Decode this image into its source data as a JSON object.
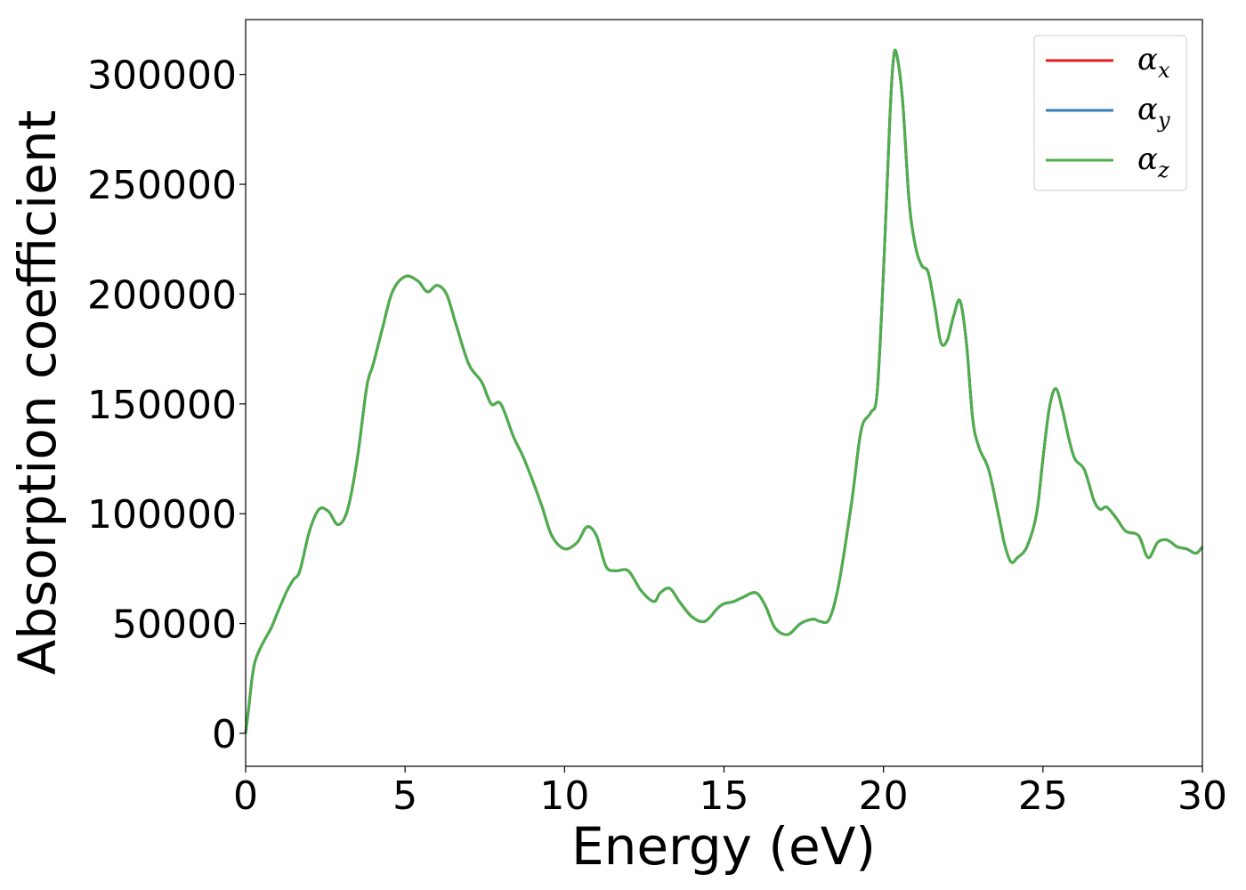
{
  "chart_data": {
    "type": "line",
    "title": "",
    "xlabel": "Energy (eV)",
    "ylabel": "Absorption coefficient",
    "xlim": [
      0,
      30
    ],
    "ylim": [
      -15000,
      325000
    ],
    "xticks": [
      0,
      5,
      10,
      15,
      20,
      25,
      30
    ],
    "xtick_labels": [
      "0",
      "5",
      "10",
      "15",
      "20",
      "25",
      "30"
    ],
    "yticks": [
      0,
      50000,
      100000,
      150000,
      200000,
      250000,
      300000
    ],
    "ytick_labels": [
      "0",
      "50000",
      "100000",
      "150000",
      "200000",
      "250000",
      "300000"
    ],
    "grid": false,
    "legend_position": "top-right",
    "x": [
      0,
      0.1,
      0.2,
      0.3,
      0.5,
      0.8,
      1.0,
      1.3,
      1.5,
      1.7,
      2.0,
      2.3,
      2.6,
      2.9,
      3.2,
      3.5,
      3.8,
      4.0,
      4.3,
      4.6,
      5.0,
      5.4,
      5.7,
      6.0,
      6.3,
      6.6,
      7.0,
      7.4,
      7.7,
      8.0,
      8.4,
      8.7,
      9.0,
      9.3,
      9.6,
      10.0,
      10.4,
      10.7,
      11.0,
      11.3,
      11.6,
      12.0,
      12.4,
      12.8,
      13.0,
      13.3,
      13.6,
      14.0,
      14.4,
      14.8,
      15.0,
      15.3,
      15.6,
      16.0,
      16.3,
      16.6,
      17.0,
      17.4,
      17.8,
      18.0,
      18.3,
      18.6,
      19.0,
      19.3,
      19.6,
      19.8,
      20.0,
      20.2,
      20.3,
      20.4,
      20.6,
      20.8,
      21.0,
      21.2,
      21.4,
      21.6,
      21.8,
      22.0,
      22.2,
      22.4,
      22.6,
      22.8,
      23.0,
      23.3,
      23.6,
      23.8,
      24.0,
      24.2,
      24.5,
      24.8,
      25.0,
      25.2,
      25.4,
      25.6,
      25.8,
      26.0,
      26.3,
      26.6,
      26.8,
      27.0,
      27.3,
      27.6,
      28.0,
      28.3,
      28.6,
      28.9,
      29.2,
      29.5,
      29.8,
      30.0
    ],
    "series": [
      {
        "name": "α_x",
        "color": "#e41a1c",
        "values": [
          0,
          12000,
          25000,
          33000,
          40000,
          48000,
          55000,
          65000,
          70000,
          74000,
          92000,
          102000,
          101000,
          95000,
          102000,
          125000,
          158000,
          168000,
          185000,
          201000,
          208000,
          206000,
          201000,
          204000,
          200000,
          186000,
          168000,
          160000,
          150000,
          150000,
          135000,
          126000,
          115000,
          103000,
          90000,
          84000,
          87000,
          94000,
          90000,
          76000,
          74000,
          74000,
          65000,
          60000,
          64000,
          66000,
          60000,
          53000,
          51000,
          57000,
          59000,
          60000,
          62000,
          64000,
          58000,
          48000,
          45000,
          50000,
          52000,
          51000,
          52000,
          68000,
          105000,
          138000,
          146000,
          155000,
          210000,
          280000,
          305000,
          310000,
          288000,
          243000,
          222000,
          213000,
          210000,
          195000,
          178000,
          179000,
          190000,
          197000,
          178000,
          143000,
          130000,
          120000,
          100000,
          86000,
          78000,
          80000,
          85000,
          100000,
          125000,
          148000,
          157000,
          148000,
          135000,
          125000,
          120000,
          106000,
          102000,
          103000,
          98000,
          92000,
          90000,
          80000,
          87000,
          88000,
          85000,
          84000,
          82000,
          85000
        ]
      },
      {
        "name": "α_y",
        "color": "#377eb8",
        "values": [
          0,
          12000,
          25000,
          33000,
          40000,
          48000,
          55000,
          65000,
          70000,
          74000,
          92000,
          102000,
          101000,
          95000,
          102000,
          125000,
          158000,
          168000,
          185000,
          201000,
          208000,
          206000,
          201000,
          204000,
          200000,
          186000,
          168000,
          160000,
          150000,
          150000,
          135000,
          126000,
          115000,
          103000,
          90000,
          84000,
          87000,
          94000,
          90000,
          76000,
          74000,
          74000,
          65000,
          60000,
          64000,
          66000,
          60000,
          53000,
          51000,
          57000,
          59000,
          60000,
          62000,
          64000,
          58000,
          48000,
          45000,
          50000,
          52000,
          51000,
          52000,
          68000,
          105000,
          138000,
          146000,
          155000,
          210000,
          280000,
          305000,
          310000,
          288000,
          243000,
          222000,
          213000,
          210000,
          195000,
          178000,
          179000,
          190000,
          197000,
          178000,
          143000,
          130000,
          120000,
          100000,
          86000,
          78000,
          80000,
          85000,
          100000,
          125000,
          148000,
          157000,
          148000,
          135000,
          125000,
          120000,
          106000,
          102000,
          103000,
          98000,
          92000,
          90000,
          80000,
          87000,
          88000,
          85000,
          84000,
          82000,
          85000
        ]
      },
      {
        "name": "α_z",
        "color": "#4daf4a",
        "values": [
          0,
          12000,
          25000,
          33000,
          40000,
          48000,
          55000,
          65000,
          70000,
          74000,
          92000,
          102000,
          101000,
          95000,
          102000,
          125000,
          158000,
          168000,
          185000,
          201000,
          208000,
          206000,
          201000,
          204000,
          200000,
          186000,
          168000,
          160000,
          150000,
          150000,
          135000,
          126000,
          115000,
          103000,
          90000,
          84000,
          87000,
          94000,
          90000,
          76000,
          74000,
          74000,
          65000,
          60000,
          64000,
          66000,
          60000,
          53000,
          51000,
          57000,
          59000,
          60000,
          62000,
          64000,
          58000,
          48000,
          45000,
          50000,
          52000,
          51000,
          52000,
          68000,
          105000,
          138000,
          146000,
          155000,
          210000,
          280000,
          305000,
          310000,
          288000,
          243000,
          222000,
          213000,
          210000,
          195000,
          178000,
          179000,
          190000,
          197000,
          178000,
          143000,
          130000,
          120000,
          100000,
          86000,
          78000,
          80000,
          85000,
          100000,
          125000,
          148000,
          157000,
          148000,
          135000,
          125000,
          120000,
          106000,
          102000,
          103000,
          98000,
          92000,
          90000,
          80000,
          87000,
          88000,
          85000,
          84000,
          82000,
          85000
        ]
      }
    ],
    "legend": [
      {
        "symbol": "α",
        "subscript": "x",
        "color": "#e41a1c"
      },
      {
        "symbol": "α",
        "subscript": "y",
        "color": "#377eb8"
      },
      {
        "symbol": "α",
        "subscript": "z",
        "color": "#4daf4a"
      }
    ]
  }
}
